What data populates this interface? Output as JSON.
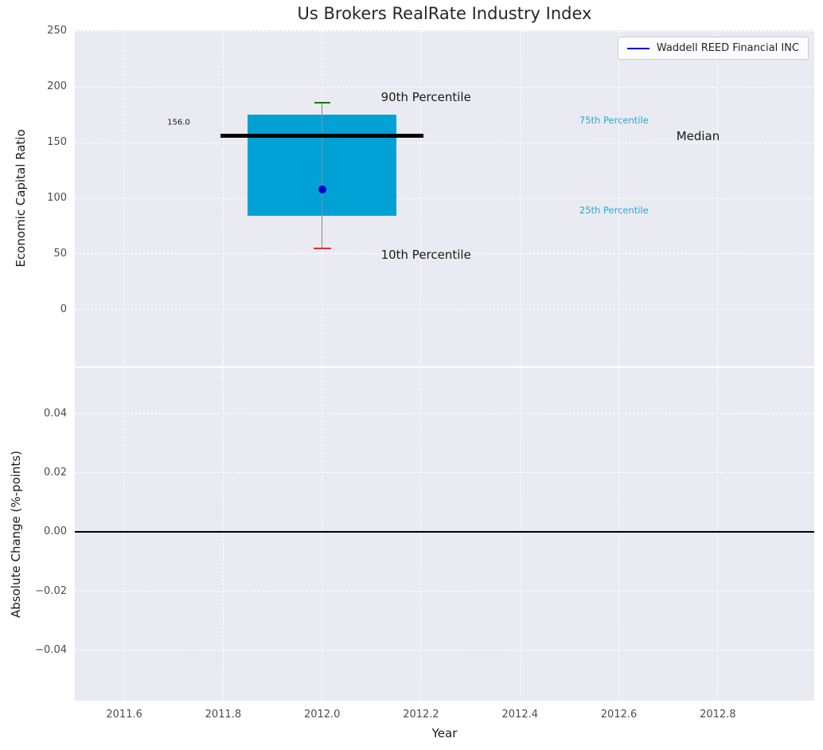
{
  "title": "Us Brokers RealRate Industry Index",
  "legend": {
    "label": "Waddell REED Financial INC",
    "line_color": "#0000cd"
  },
  "chart_data": [
    {
      "type": "box",
      "title": "Us Brokers RealRate Industry Index",
      "ylabel": "Economic Capital Ratio",
      "xlim": [
        2011.5,
        2012.995
      ],
      "ylim": [
        -51,
        251
      ],
      "grid": true,
      "legend_position": "upper right",
      "yticks": [
        0,
        50,
        100,
        150,
        200,
        250
      ],
      "ytick_labels": [
        "0",
        "50",
        "100",
        "150",
        "200",
        "250"
      ],
      "xticks": [
        2011.6,
        2011.8,
        2012.0,
        2012.2,
        2012.4,
        2012.6,
        2012.8
      ],
      "series": {
        "name": "Waddell REED Financial INC",
        "year": 2012.0,
        "p10": 55,
        "p25": 84,
        "median": 156,
        "p75": 175,
        "p90": 186,
        "company_value": 108,
        "box_halfwidth": 0.15,
        "median_halfwidth": 0.205
      },
      "colors": {
        "box": "#00a1d5",
        "median_line": "#000000",
        "whisker": "#8a8a8a",
        "p90_cap": "#008000",
        "p10_cap": "#e03131",
        "company_dot": "#0000cd",
        "percentile_text": "#2aa8cf"
      },
      "annotations": [
        {
          "text": "90th Percentile",
          "x": 2012.21,
          "y": 191,
          "color": "#1a1a1a",
          "size": 15
        },
        {
          "text": "10th Percentile",
          "x": 2012.21,
          "y": 49,
          "color": "#1a1a1a",
          "size": 15
        },
        {
          "text": "75th Percentile",
          "x": 2012.59,
          "y": 170,
          "color": "#2aa8cf",
          "size": 11.5
        },
        {
          "text": "25th Percentile",
          "x": 2012.59,
          "y": 89,
          "color": "#2aa8cf",
          "size": 11.5
        },
        {
          "text": "Median",
          "x": 2012.76,
          "y": 156,
          "color": "#1a1a1a",
          "size": 15
        },
        {
          "text": "156.0",
          "x": 2011.71,
          "y": 168,
          "color": "#1a1a1a",
          "size": 10
        }
      ]
    },
    {
      "type": "line",
      "ylabel": "Absolute Change (%-points)",
      "xlabel": "Year",
      "xlim": [
        2011.5,
        2012.995
      ],
      "ylim": [
        -0.057,
        0.0555
      ],
      "grid": true,
      "yticks": [
        -0.04,
        -0.02,
        0,
        0.02,
        0.04
      ],
      "ytick_labels": [
        "−0.04",
        "−0.02",
        "0.00",
        "0.02",
        "0.04"
      ],
      "xticks": [
        2011.6,
        2011.8,
        2012.0,
        2012.2,
        2012.4,
        2012.6,
        2012.8
      ],
      "xtick_labels": [
        "2011.6",
        "2011.8",
        "2012.0",
        "2012.2",
        "2012.4",
        "2012.6",
        "2012.8"
      ],
      "zero_line": 0,
      "series": []
    }
  ]
}
